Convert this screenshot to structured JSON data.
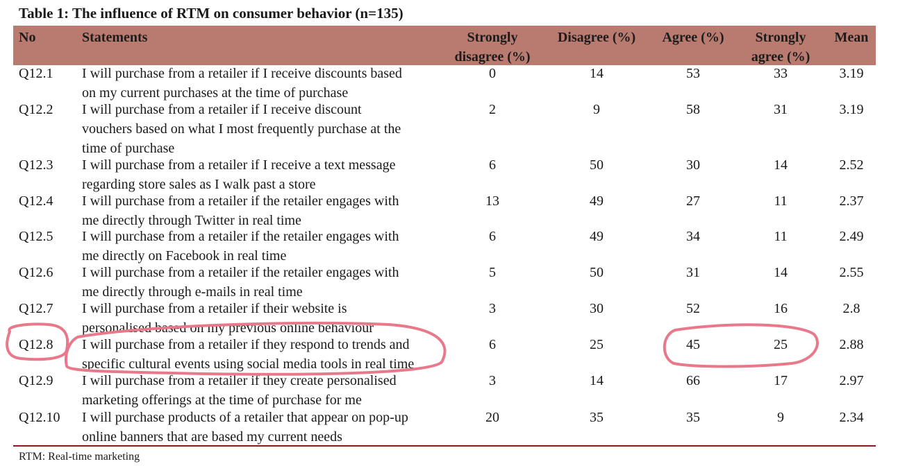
{
  "title": "Table 1: The influence of RTM on consumer behavior (n=135)",
  "headers": {
    "no": "No",
    "statements": "Statements",
    "sd1": "Strongly",
    "sd2": "disagree (%)",
    "d": "Disagree (%)",
    "a": "Agree (%)",
    "sa1": "Strongly",
    "sa2": "agree (%)",
    "mean": "Mean"
  },
  "rows": [
    {
      "no": "Q12.1",
      "s1": "I will purchase from a retailer if I receive discounts based",
      "s2": "on my current purchases at the time of purchase",
      "s3": "",
      "sd": "0",
      "d": "14",
      "a": "53",
      "sa": "33",
      "mean": "3.19"
    },
    {
      "no": "Q12.2",
      "s1": "I will purchase from a retailer if I receive discount",
      "s2": "vouchers based on what I most frequently purchase at the",
      "s3": "time of purchase",
      "sd": "2",
      "d": "9",
      "a": "58",
      "sa": "31",
      "mean": "3.19"
    },
    {
      "no": "Q12.3",
      "s1": "I will purchase from a retailer if I receive a text message",
      "s2": "regarding store sales as I walk past a store",
      "s3": "",
      "sd": "6",
      "d": "50",
      "a": "30",
      "sa": "14",
      "mean": "2.52"
    },
    {
      "no": "Q12.4",
      "s1": "I will purchase from a retailer if the retailer engages with",
      "s2": "me directly through Twitter in real time",
      "s3": "",
      "sd": "13",
      "d": "49",
      "a": "27",
      "sa": "11",
      "mean": "2.37"
    },
    {
      "no": "Q12.5",
      "s1": "I will purchase from a retailer if the retailer engages with",
      "s2": "me directly on Facebook in real time",
      "s3": "",
      "sd": "6",
      "d": "49",
      "a": "34",
      "sa": "11",
      "mean": "2.49"
    },
    {
      "no": "Q12.6",
      "s1": "I will purchase from a retailer if the retailer engages with",
      "s2": "me directly through e-mails in real time",
      "s3": "",
      "sd": "5",
      "d": "50",
      "a": "31",
      "sa": "14",
      "mean": "2.55"
    },
    {
      "no": "Q12.7",
      "s1": "I will purchase from a retailer if their website is",
      "s2": "personalised based on my previous online behaviour",
      "s3": "",
      "sd": "3",
      "d": "30",
      "a": "52",
      "sa": "16",
      "mean": "2.8"
    },
    {
      "no": "Q12.8",
      "s1": "I will purchase from a retailer if they respond to trends and",
      "s2": "specific cultural events using social media tools in real time",
      "s3": "",
      "sd": "6",
      "d": "25",
      "a": "45",
      "sa": "25",
      "mean": "2.88"
    },
    {
      "no": "Q12.9",
      "s1": "I will purchase from a retailer if they create personalised",
      "s2": "marketing offerings at the time of purchase for me",
      "s3": "",
      "sd": "3",
      "d": "14",
      "a": "66",
      "sa": "17",
      "mean": "2.97"
    },
    {
      "no": "Q12.10",
      "s1": "I will purchase products of a retailer that appear on pop-up",
      "s2": "online banners that are based my current needs",
      "s3": "",
      "sd": "20",
      "d": "35",
      "a": "35",
      "sa": "9",
      "mean": "2.34"
    }
  ],
  "footnote": "RTM: Real-time marketing",
  "colors": {
    "header_bg": "#b97b70",
    "rule": "#8b1a1a",
    "annotation": "#e8798a"
  }
}
